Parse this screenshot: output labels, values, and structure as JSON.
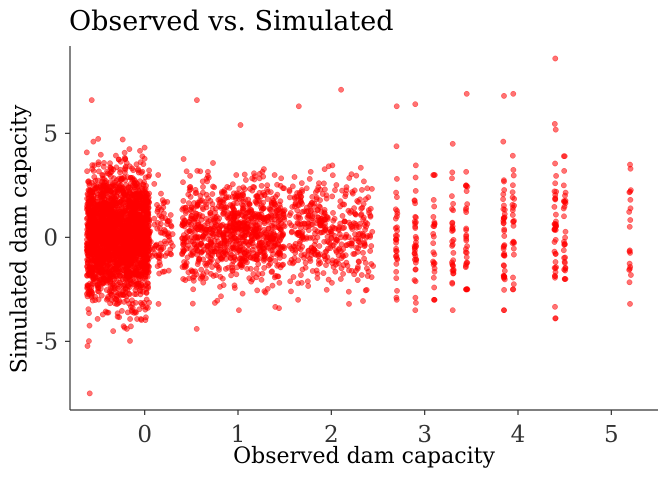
{
  "chart_data": {
    "type": "scatter",
    "title": "Observed vs. Simulated",
    "xlabel": "Observed dam capacity",
    "ylabel": "Simulated dam capacity",
    "xlim": [
      -0.8,
      5.5
    ],
    "ylim": [
      -8.3,
      9.2
    ],
    "x_ticks": [
      0,
      1,
      2,
      3,
      4,
      5
    ],
    "y_ticks": [
      -5,
      0,
      5
    ],
    "point_color": "#ff0000",
    "point_opacity": 0.55,
    "grid": false,
    "clusters": [
      {
        "x_range": [
          -0.62,
          0.05
        ],
        "y_mean": 0.0,
        "y_sd": 1.5,
        "n": 2400,
        "y_min": -7.5,
        "y_max": 6.6
      },
      {
        "x_range": [
          0.05,
          0.3
        ],
        "y_mean": 0.0,
        "y_sd": 1.0,
        "n": 80,
        "y_min": -3.2,
        "y_max": 3.0
      },
      {
        "x_range": [
          0.4,
          0.95
        ],
        "y_mean": 0.2,
        "y_sd": 1.2,
        "n": 420,
        "y_min": -4.4,
        "y_max": 6.6
      },
      {
        "x_range": [
          0.95,
          1.5
        ],
        "y_mean": 0.3,
        "y_sd": 1.2,
        "n": 500,
        "y_min": -3.5,
        "y_max": 5.4
      },
      {
        "x_range": [
          1.55,
          1.95
        ],
        "y_mean": 0.5,
        "y_sd": 1.2,
        "n": 220,
        "y_min": -3.0,
        "y_max": 6.3
      },
      {
        "x_range": [
          1.95,
          2.45
        ],
        "y_mean": 0.2,
        "y_sd": 1.2,
        "n": 200,
        "y_min": -3.2,
        "y_max": 7.1
      }
    ],
    "columns": [
      {
        "x": 2.7,
        "y_min": -3.0,
        "y_max": 6.3,
        "n": 30
      },
      {
        "x": 2.9,
        "y_min": -3.5,
        "y_max": 6.4,
        "n": 35
      },
      {
        "x": 3.1,
        "y_min": -3.0,
        "y_max": 3.0,
        "n": 25
      },
      {
        "x": 3.3,
        "y_min": -3.5,
        "y_max": 4.5,
        "n": 30
      },
      {
        "x": 3.45,
        "y_min": -2.5,
        "y_max": 6.9,
        "n": 30
      },
      {
        "x": 3.85,
        "y_min": -3.5,
        "y_max": 6.8,
        "n": 40
      },
      {
        "x": 3.95,
        "y_min": -2.5,
        "y_max": 6.9,
        "n": 25
      },
      {
        "x": 4.4,
        "y_min": -3.9,
        "y_max": 8.6,
        "n": 40
      },
      {
        "x": 4.5,
        "y_min": -2.0,
        "y_max": 3.9,
        "n": 30
      },
      {
        "x": 5.2,
        "y_min": -3.2,
        "y_max": 3.5,
        "n": 18
      }
    ]
  }
}
